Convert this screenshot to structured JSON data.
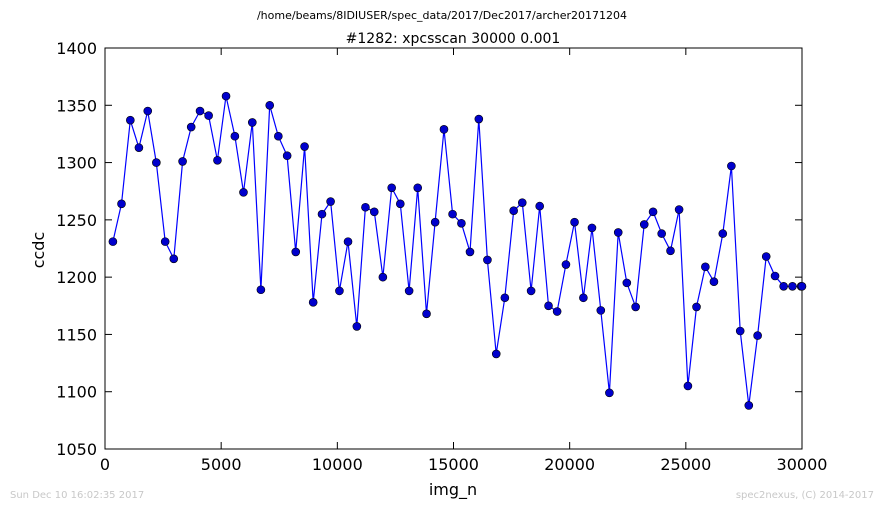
{
  "header": {
    "path_title": "/home/beams/8IDIUSER/spec_data/2017/Dec2017/archer20171204",
    "scan_title": "#1282: xpcsscan 30000 0.001"
  },
  "footer": {
    "timestamp": "Sun Dec 10 16:02:35 2017",
    "credit": "spec2nexus, (C) 2014-2017"
  },
  "colors": {
    "series": "#0000ff",
    "marker_fill": "#0000cc",
    "axes": "#000000",
    "footer_text": "#c8c8c8"
  },
  "chart_data": {
    "type": "line",
    "title": "#1282: xpcsscan 30000 0.001",
    "xlabel": "img_n",
    "ylabel": "ccdc",
    "xlim": [
      0,
      30000
    ],
    "ylim": [
      1050,
      1400
    ],
    "xticks": [
      0,
      5000,
      10000,
      15000,
      20000,
      25000,
      30000
    ],
    "yticks": [
      1050,
      1100,
      1150,
      1200,
      1250,
      1300,
      1350,
      1400
    ],
    "grid": false,
    "marker": "circle",
    "series": [
      {
        "x": [
          340,
          710,
          1090,
          1460,
          1840,
          2210,
          2590,
          2960,
          3340,
          3710,
          4090,
          4460,
          4840,
          5210,
          5590,
          5960,
          6340,
          6710,
          7090,
          7460,
          7840,
          8210,
          8590,
          8960,
          9340,
          9710,
          10090,
          10460,
          10840,
          11210,
          11590,
          11960,
          12340,
          12710,
          13090,
          13460,
          13840,
          14210,
          14590,
          14960,
          15340,
          15710,
          16090,
          16460,
          16840,
          17210,
          17590,
          17960,
          18340,
          18710,
          19090,
          19460,
          19840,
          20210,
          20590,
          20960,
          21340,
          21710,
          22090,
          22460,
          22840,
          23210,
          23590,
          23960,
          24340,
          24710,
          25090,
          25460,
          25840,
          26210,
          26590,
          26960,
          27340,
          27710,
          28090,
          28460,
          28840,
          29210,
          29590,
          29960,
          30000
        ],
        "values": [
          1231,
          1264,
          1337,
          1313,
          1345,
          1300,
          1231,
          1216,
          1301,
          1331,
          1345,
          1341,
          1302,
          1358,
          1323,
          1274,
          1335,
          1189,
          1350,
          1323,
          1306,
          1222,
          1314,
          1178,
          1255,
          1266,
          1188,
          1231,
          1157,
          1261,
          1257,
          1200,
          1278,
          1264,
          1188,
          1278,
          1168,
          1248,
          1329,
          1255,
          1247,
          1222,
          1338,
          1215,
          1133,
          1182,
          1258,
          1265,
          1188,
          1262,
          1175,
          1170,
          1211,
          1248,
          1182,
          1243,
          1171,
          1099,
          1239,
          1195,
          1174,
          1246,
          1257,
          1238,
          1223,
          1259,
          1105,
          1174,
          1209,
          1196,
          1238,
          1297,
          1153,
          1088,
          1149,
          1218,
          1201,
          1192,
          1192,
          1192,
          1192
        ]
      }
    ]
  }
}
